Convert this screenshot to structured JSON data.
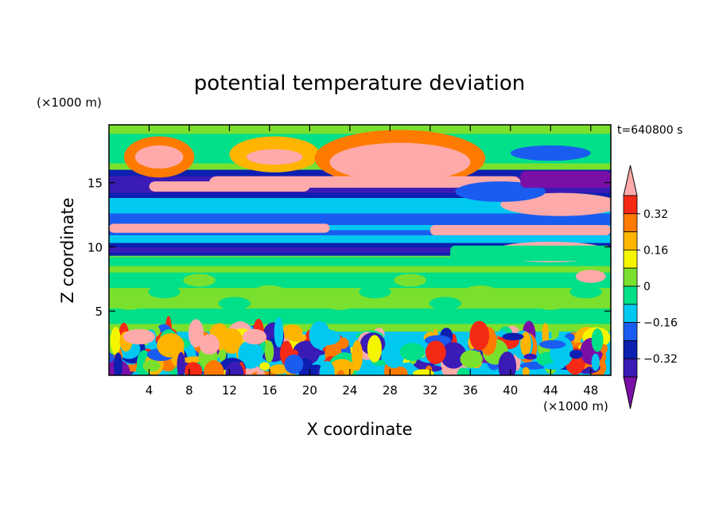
{
  "chart_data": {
    "type": "heatmap",
    "title": "potential temperature deviation",
    "xlabel": "X coordinate",
    "ylabel": "Z coordinate",
    "x_unit": "(×1000 m)",
    "y_unit": "(×1000 m)",
    "time_label": "t=640800 s",
    "xlim": [
      0,
      50
    ],
    "ylim": [
      0,
      19.5
    ],
    "x_ticks": [
      4,
      8,
      12,
      16,
      20,
      24,
      28,
      32,
      36,
      40,
      44,
      48
    ],
    "y_ticks": [
      5,
      10,
      15
    ],
    "grid": false,
    "legend": "colorbar-right",
    "colorbar": {
      "levels": [
        -0.48,
        -0.4,
        -0.32,
        -0.24,
        -0.16,
        -0.08,
        0,
        0.08,
        0.16,
        0.24,
        0.32,
        0.4
      ],
      "labels": [
        "0.32",
        "0.16",
        "0",
        "−0.16",
        "−0.32"
      ],
      "label_values": [
        0.32,
        0.16,
        0,
        -0.16,
        -0.32
      ],
      "colors": [
        "#7a0fa8",
        "#3a1bb5",
        "#0d1fb0",
        "#1a5cf0",
        "#00c8f0",
        "#00e089",
        "#7ae02e",
        "#f5f500",
        "#ffb400",
        "#ff7a00",
        "#f52a14",
        "#ffaaaa"
      ],
      "extend": "both"
    },
    "bands": [
      {
        "z": [
          0,
          3.2
        ],
        "value": "mixed turbulent"
      },
      {
        "z": [
          3.2,
          9.3
        ],
        "value": 0.04
      },
      {
        "z": [
          9.3,
          10.3
        ],
        "value": -0.36
      },
      {
        "z": [
          10.3,
          13.8
        ],
        "value": -0.1
      },
      {
        "z": [
          13.8,
          16.0
        ],
        "value": -0.4
      },
      {
        "z": [
          16.0,
          19.5
        ],
        "value": 0.04
      }
    ]
  }
}
